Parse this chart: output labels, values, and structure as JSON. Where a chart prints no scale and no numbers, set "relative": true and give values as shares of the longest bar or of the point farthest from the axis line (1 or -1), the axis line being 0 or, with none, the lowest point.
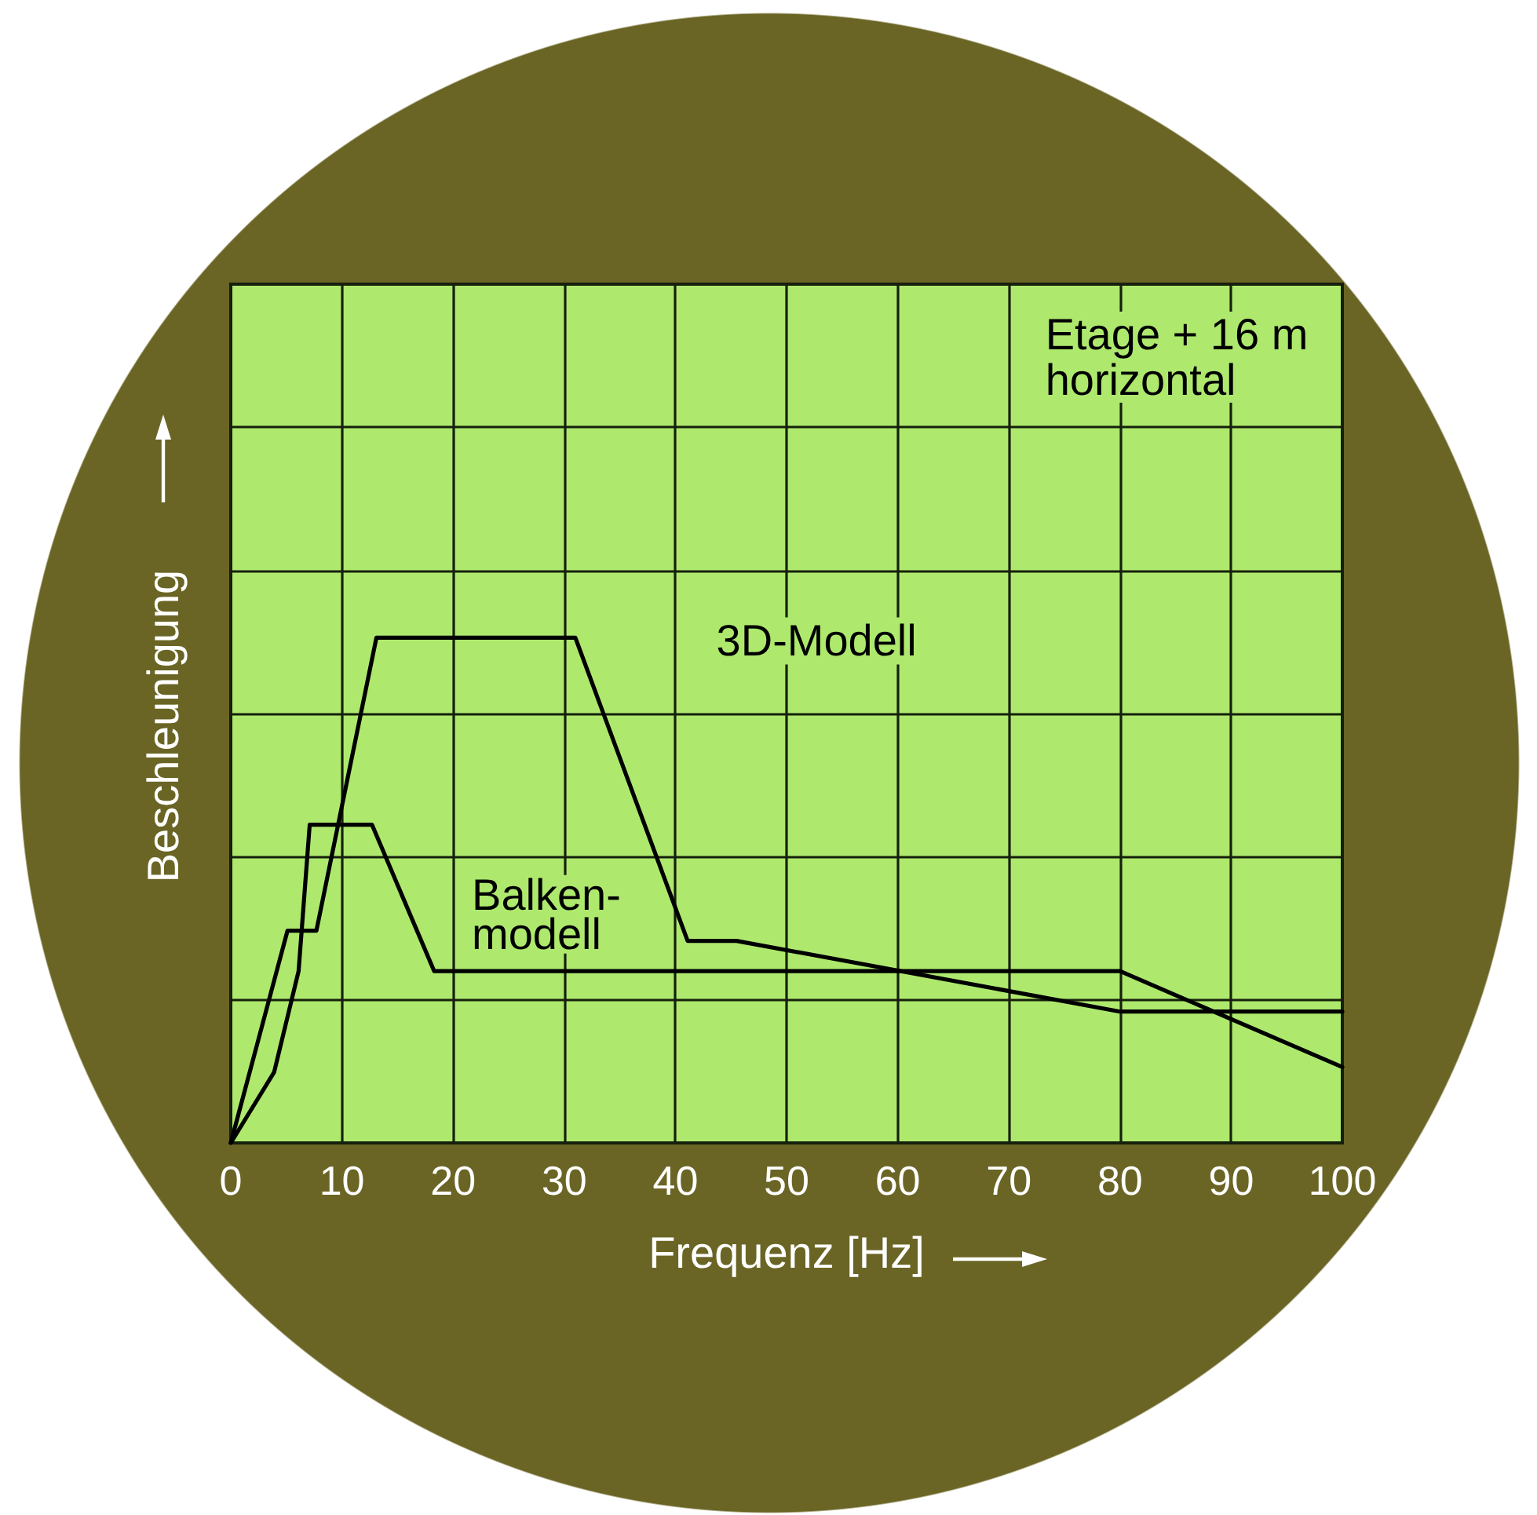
{
  "chart_data": {
    "type": "line",
    "relative": true,
    "xlabel": "Frequenz [Hz]",
    "ylabel": "Beschleunigung",
    "annotations": [
      "Etage + 16 m horizontal"
    ],
    "xlim": [
      0,
      100
    ],
    "xticks": [
      0,
      10,
      20,
      30,
      40,
      50,
      60,
      70,
      80,
      90,
      100
    ],
    "grid": true,
    "legend": false,
    "marker": "none",
    "series": [
      {
        "name": "3D-Modell",
        "color": "#000000",
        "x": [
          0,
          5.1,
          7.7,
          13.1,
          31.0,
          41.1,
          45.5,
          80,
          100
        ],
        "values": [
          0,
          0.42,
          0.42,
          1,
          1,
          0.4,
          0.4,
          0.26,
          0.26
        ]
      },
      {
        "name": "Balken-modell",
        "color": "#000000",
        "x": [
          0,
          3.9,
          6.1,
          7.1,
          12.7,
          18.3,
          80,
          100
        ],
        "values": [
          0,
          0.14,
          0.34,
          0.63,
          0.63,
          0.34,
          0.34,
          0.15
        ]
      }
    ]
  }
}
